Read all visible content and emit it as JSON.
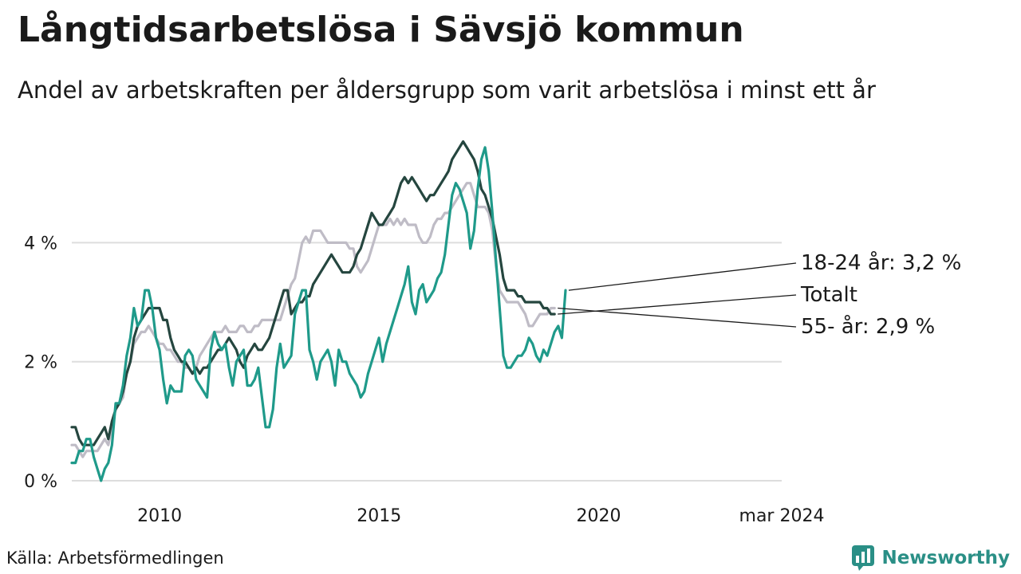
{
  "header": {
    "title": "Långtidsarbetslösa i Sävsjö kommun",
    "subtitle": "Andel av arbetskraften per åldersgrupp som varit arbetslösa i minst ett år"
  },
  "footer": {
    "source": "Källa: Arbetsförmedlingen",
    "brand": "Newsworthy",
    "brand_icon": "bar-chart-logo-icon"
  },
  "colors": {
    "youth": "#1f9a8a",
    "total": "#25463f",
    "senior": "#bfbcc6",
    "grid": "#dddddd",
    "brand": "#2a8f86"
  },
  "chart_data": {
    "type": "line",
    "title": "Långtidsarbetslösa i Sävsjö kommun",
    "xlabel": "",
    "ylabel": "",
    "x_start": 2008.0,
    "x_step": 0.0833,
    "xlim": [
      2008.0,
      2024.17
    ],
    "ylim": [
      0,
      5.8
    ],
    "y_ticks": [
      0,
      2,
      4
    ],
    "y_tick_labels": [
      "0 %",
      "2 %",
      "4 %"
    ],
    "x_ticks": [
      2010,
      2015,
      2020,
      2024.17
    ],
    "x_tick_labels": [
      "2010",
      "2015",
      "2020",
      "mar 2024"
    ],
    "grid": true,
    "series": [
      {
        "name": "55- år",
        "key": "senior",
        "label": "55- år: 2,9 %",
        "values": [
          0.6,
          0.6,
          0.5,
          0.4,
          0.5,
          0.5,
          0.5,
          0.5,
          0.6,
          0.7,
          0.6,
          0.9,
          1.2,
          1.3,
          1.4,
          1.8,
          2.0,
          2.3,
          2.4,
          2.5,
          2.5,
          2.6,
          2.5,
          2.4,
          2.3,
          2.3,
          2.2,
          2.2,
          2.1,
          2.0,
          2.0,
          1.9,
          1.9,
          1.8,
          1.9,
          2.1,
          2.2,
          2.3,
          2.4,
          2.5,
          2.5,
          2.5,
          2.6,
          2.5,
          2.5,
          2.5,
          2.6,
          2.6,
          2.5,
          2.5,
          2.6,
          2.6,
          2.7,
          2.7,
          2.7,
          2.7,
          2.7,
          2.7,
          2.9,
          3.1,
          3.3,
          3.4,
          3.7,
          4.0,
          4.1,
          4.0,
          4.2,
          4.2,
          4.2,
          4.1,
          4.0,
          4.0,
          4.0,
          4.0,
          4.0,
          4.0,
          3.9,
          3.9,
          3.6,
          3.5,
          3.6,
          3.7,
          3.9,
          4.1,
          4.3,
          4.3,
          4.3,
          4.4,
          4.3,
          4.4,
          4.3,
          4.4,
          4.3,
          4.3,
          4.3,
          4.1,
          4.0,
          4.0,
          4.1,
          4.3,
          4.4,
          4.4,
          4.5,
          4.5,
          4.6,
          4.7,
          4.8,
          4.9,
          5.0,
          5.0,
          4.8,
          4.6,
          4.6,
          4.6,
          4.5,
          4.2,
          3.6,
          3.2,
          3.1,
          3.0,
          3.0,
          3.0,
          3.0,
          2.9,
          2.8,
          2.6,
          2.6,
          2.7,
          2.8,
          2.8,
          2.8,
          2.9,
          2.9
        ]
      },
      {
        "name": "Totalt",
        "key": "total",
        "label": "Totalt",
        "values": [
          0.9,
          0.9,
          0.7,
          0.6,
          0.6,
          0.6,
          0.6,
          0.7,
          0.8,
          0.9,
          0.7,
          1.0,
          1.2,
          1.3,
          1.5,
          1.8,
          2.0,
          2.4,
          2.6,
          2.7,
          2.8,
          2.9,
          2.9,
          2.9,
          2.9,
          2.7,
          2.7,
          2.4,
          2.2,
          2.1,
          2.0,
          2.0,
          1.9,
          1.8,
          1.9,
          1.8,
          1.9,
          1.9,
          2.0,
          2.1,
          2.2,
          2.2,
          2.3,
          2.4,
          2.3,
          2.2,
          2.0,
          1.9,
          2.1,
          2.2,
          2.3,
          2.2,
          2.2,
          2.3,
          2.4,
          2.6,
          2.8,
          3.0,
          3.2,
          3.2,
          2.8,
          2.9,
          3.0,
          3.0,
          3.1,
          3.1,
          3.3,
          3.4,
          3.5,
          3.6,
          3.7,
          3.8,
          3.7,
          3.6,
          3.5,
          3.5,
          3.5,
          3.6,
          3.8,
          3.9,
          4.1,
          4.3,
          4.5,
          4.4,
          4.3,
          4.3,
          4.4,
          4.5,
          4.6,
          4.8,
          5.0,
          5.1,
          5.0,
          5.1,
          5.0,
          4.9,
          4.8,
          4.7,
          4.8,
          4.8,
          4.9,
          5.0,
          5.1,
          5.2,
          5.4,
          5.5,
          5.6,
          5.7,
          5.6,
          5.5,
          5.4,
          5.2,
          4.9,
          4.8,
          4.6,
          4.4,
          4.1,
          3.8,
          3.4,
          3.2,
          3.2,
          3.2,
          3.1,
          3.1,
          3.0,
          3.0,
          3.0,
          3.0,
          3.0,
          2.9,
          2.9,
          2.8,
          2.8
        ]
      },
      {
        "name": "18-24 år",
        "key": "youth",
        "label": "18-24 år: 3,2 %",
        "values": [
          0.3,
          0.3,
          0.5,
          0.5,
          0.7,
          0.7,
          0.4,
          0.2,
          0.0,
          0.2,
          0.3,
          0.6,
          1.3,
          1.3,
          1.6,
          2.1,
          2.4,
          2.9,
          2.6,
          2.7,
          3.2,
          3.2,
          2.9,
          2.4,
          2.2,
          1.7,
          1.3,
          1.6,
          1.5,
          1.5,
          1.5,
          2.1,
          2.2,
          2.1,
          1.7,
          1.6,
          1.5,
          1.4,
          2.2,
          2.5,
          2.3,
          2.2,
          2.3,
          1.9,
          1.6,
          2.0,
          2.1,
          2.2,
          1.6,
          1.6,
          1.7,
          1.9,
          1.4,
          0.9,
          0.9,
          1.2,
          1.9,
          2.3,
          1.9,
          2.0,
          2.1,
          2.8,
          3.0,
          3.2,
          3.2,
          2.2,
          2.0,
          1.7,
          2.0,
          2.1,
          2.2,
          2.0,
          1.6,
          2.2,
          2.0,
          2.0,
          1.8,
          1.7,
          1.6,
          1.4,
          1.5,
          1.8,
          2.0,
          2.2,
          2.4,
          2.0,
          2.3,
          2.5,
          2.7,
          2.9,
          3.1,
          3.3,
          3.6,
          3.0,
          2.8,
          3.2,
          3.3,
          3.0,
          3.1,
          3.2,
          3.4,
          3.5,
          3.8,
          4.3,
          4.8,
          5.0,
          4.9,
          4.7,
          4.5,
          3.9,
          4.2,
          4.9,
          5.4,
          5.6,
          5.2,
          4.5,
          3.7,
          2.9,
          2.1,
          1.9,
          1.9,
          2.0,
          2.1,
          2.1,
          2.2,
          2.4,
          2.3,
          2.1,
          2.0,
          2.2,
          2.1,
          2.3,
          2.5,
          2.6,
          2.4,
          3.2
        ]
      }
    ]
  }
}
